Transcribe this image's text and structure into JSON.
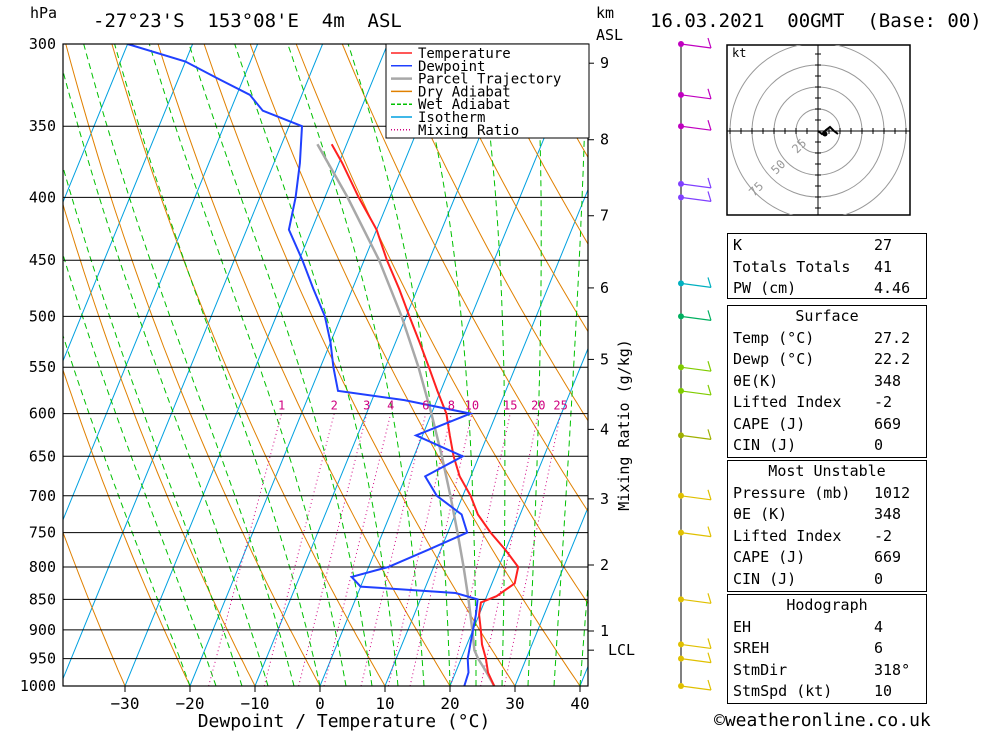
{
  "header": {
    "hpa_label": "hPa",
    "location": "-27°23'S  153°08'E  4m  ASL",
    "km_label": "km",
    "asl_label": "ASL",
    "date": "16.03.2021  00GMT  (Base: 00)"
  },
  "legend": [
    {
      "label": "Temperature",
      "color": "#ff2020"
    },
    {
      "label": "Dewpoint",
      "color": "#2040ff"
    },
    {
      "label": "Parcel Trajectory",
      "color": "#a8a8a8"
    },
    {
      "label": "Dry Adiabat",
      "color": "#e08000"
    },
    {
      "label": "Wet Adiabat",
      "color": "#00c000"
    },
    {
      "label": "Isotherm",
      "color": "#00a0e0"
    },
    {
      "label": "Mixing Ratio",
      "color": "#d00080"
    }
  ],
  "hodograph": {
    "unit": "kt",
    "ring_labels": [
      "25",
      "50",
      "75"
    ]
  },
  "stats_group1": [
    {
      "label": "K",
      "value": "27"
    },
    {
      "label": "Totals Totals",
      "value": "41"
    },
    {
      "label": "PW (cm)",
      "value": "4.46"
    }
  ],
  "surface": {
    "title": "Surface",
    "rows": [
      {
        "label": "Temp (°C)",
        "value": "27.2"
      },
      {
        "label": "Dewp (°C)",
        "value": "22.2"
      },
      {
        "label": "θE(K)",
        "value": "348"
      },
      {
        "label": "Lifted Index",
        "value": "-2"
      },
      {
        "label": "CAPE (J)",
        "value": "669"
      },
      {
        "label": "CIN (J)",
        "value": "0"
      }
    ]
  },
  "most_unstable": {
    "title": "Most Unstable",
    "rows": [
      {
        "label": "Pressure (mb)",
        "value": "1012"
      },
      {
        "label": "θE (K)",
        "value": "348"
      },
      {
        "label": "Lifted Index",
        "value": "-2"
      },
      {
        "label": "CAPE (J)",
        "value": "669"
      },
      {
        "label": "CIN (J)",
        "value": "0"
      }
    ]
  },
  "hodograph_stats": {
    "title": "Hodograph",
    "rows": [
      {
        "label": "EH",
        "value": "4"
      },
      {
        "label": "SREH",
        "value": "6"
      },
      {
        "label": "StmDir",
        "value": "318°"
      },
      {
        "label": "StmSpd (kt)",
        "value": "10"
      }
    ]
  },
  "footer": {
    "copyright": "©weatheronline.co.uk"
  },
  "chart_data": {
    "type": "line",
    "title": "Skew-T log-P sounding",
    "xlabel": "Dewpoint / Temperature (°C)",
    "ylabel": "hPa",
    "secondary_y_label": "Mixing Ratio (g/kg)",
    "x_ticks": [
      -30,
      -20,
      -10,
      0,
      10,
      20,
      30,
      40
    ],
    "x_tick_labels": [
      "−30",
      "−20",
      "−10",
      "0",
      "10",
      "20",
      "30",
      "40"
    ],
    "pressure_levels": [
      300,
      350,
      400,
      450,
      500,
      550,
      600,
      650,
      700,
      750,
      800,
      850,
      900,
      950,
      1000
    ],
    "km_levels": [
      {
        "label": "1",
        "p": 902
      },
      {
        "label": "2",
        "p": 797
      },
      {
        "label": "3",
        "p": 704
      },
      {
        "label": "4",
        "p": 618
      },
      {
        "label": "5",
        "p": 542
      },
      {
        "label": "6",
        "p": 474
      },
      {
        "label": "7",
        "p": 414
      },
      {
        "label": "8",
        "p": 359
      },
      {
        "label": "9",
        "p": 311
      }
    ],
    "lcl": {
      "label": "LCL",
      "p": 935
    },
    "mixing_ratio_labels": [
      "1",
      "2",
      "3",
      "4",
      "6",
      "8",
      "10",
      "15",
      "20",
      "25"
    ],
    "mixing_ratio_values": [
      1,
      2,
      3,
      4,
      6,
      8,
      10,
      15,
      20,
      25
    ],
    "series": [
      {
        "name": "Temperature",
        "points": [
          [
            1000,
            26.8
          ],
          [
            975,
            25
          ],
          [
            950,
            23.8
          ],
          [
            925,
            22.3
          ],
          [
            900,
            21.2
          ],
          [
            875,
            20.0
          ],
          [
            855,
            19.5
          ],
          [
            845,
            21.5
          ],
          [
            825,
            23.5
          ],
          [
            800,
            23.0
          ],
          [
            775,
            20.0
          ],
          [
            750,
            16.6
          ],
          [
            725,
            13.5
          ],
          [
            700,
            11.2
          ],
          [
            675,
            8.3
          ],
          [
            650,
            6.1
          ],
          [
            625,
            4.2
          ],
          [
            600,
            2.3
          ],
          [
            575,
            -0.5
          ],
          [
            550,
            -3.3
          ],
          [
            525,
            -6.3
          ],
          [
            500,
            -9.5
          ],
          [
            475,
            -12.8
          ],
          [
            450,
            -16.5
          ],
          [
            425,
            -20.0
          ],
          [
            400,
            -24.8
          ],
          [
            375,
            -29.5
          ],
          [
            362,
            -32.3
          ]
        ]
      },
      {
        "name": "Dewpoint",
        "points": [
          [
            1000,
            22.2
          ],
          [
            975,
            22.0
          ],
          [
            950,
            21.0
          ],
          [
            925,
            20.5
          ],
          [
            900,
            20.0
          ],
          [
            875,
            19.5
          ],
          [
            850,
            18.8
          ],
          [
            840,
            15
          ],
          [
            830,
            0
          ],
          [
            815,
            -2.0
          ],
          [
            800,
            3.0
          ],
          [
            775,
            8.0
          ],
          [
            750,
            13.0
          ],
          [
            725,
            11.0
          ],
          [
            700,
            6.0
          ],
          [
            675,
            3.0
          ],
          [
            650,
            7.5
          ],
          [
            625,
            -1
          ],
          [
            600,
            6.0
          ],
          [
            585,
            -5.0
          ],
          [
            575,
            -15.8
          ],
          [
            550,
            -18.0
          ],
          [
            525,
            -20.0
          ],
          [
            500,
            -22.5
          ],
          [
            475,
            -26.0
          ],
          [
            450,
            -29.5
          ],
          [
            425,
            -33.5
          ],
          [
            400,
            -34.5
          ],
          [
            375,
            -36.0
          ],
          [
            350,
            -38.0
          ],
          [
            340,
            -45.0
          ],
          [
            330,
            -48.0
          ],
          [
            320,
            -54.0
          ],
          [
            310,
            -60.0
          ],
          [
            300,
            -70.0
          ]
        ]
      },
      {
        "name": "Parcel Trajectory",
        "points": [
          [
            1000,
            26.8
          ],
          [
            975,
            24.8
          ],
          [
            950,
            22.6
          ],
          [
            935,
            21.5
          ],
          [
            900,
            19.9
          ],
          [
            850,
            17.4
          ],
          [
            800,
            14.6
          ],
          [
            750,
            11.5
          ],
          [
            700,
            8.1
          ],
          [
            650,
            4.3
          ],
          [
            600,
            0.0
          ],
          [
            550,
            -4.9
          ],
          [
            500,
            -10.7
          ],
          [
            450,
            -17.7
          ],
          [
            400,
            -26.5
          ],
          [
            362,
            -34.5
          ]
        ]
      }
    ],
    "wind_barb_levels": [
      300,
      330,
      350,
      390,
      400,
      470,
      500,
      550,
      575,
      625,
      700,
      750,
      850,
      925,
      950,
      1000
    ]
  }
}
